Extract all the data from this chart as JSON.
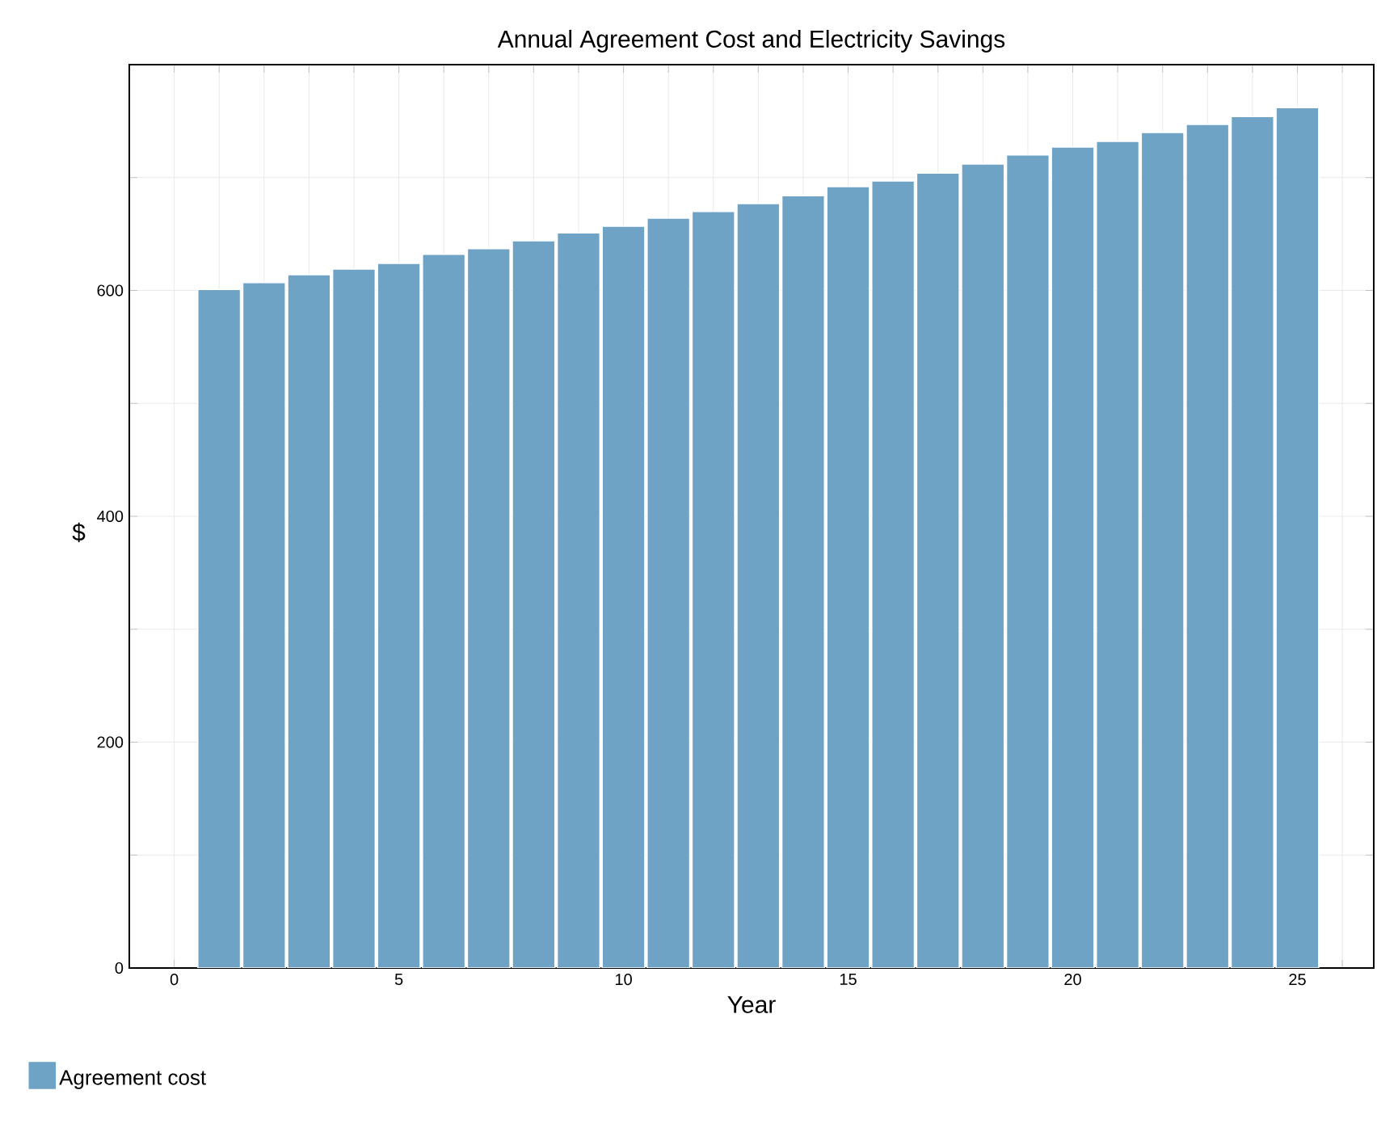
{
  "chart_data": {
    "type": "bar",
    "title": "Annual Agreement Cost and Electricity Savings",
    "xlabel": "Year",
    "ylabel": "$",
    "x": [
      1,
      2,
      3,
      4,
      5,
      6,
      7,
      8,
      9,
      10,
      11,
      12,
      13,
      14,
      15,
      16,
      17,
      18,
      19,
      20,
      21,
      22,
      23,
      24,
      25
    ],
    "series": [
      {
        "name": "Agreement cost",
        "color": "#6fa3c5",
        "values": [
          601,
          607,
          614,
          619,
          624,
          632,
          637,
          644,
          651,
          657,
          664,
          670,
          677,
          684,
          692,
          697,
          704,
          712,
          720,
          727,
          732,
          740,
          747,
          754,
          762
        ]
      }
    ],
    "xlim": [
      -1,
      26.7
    ],
    "ylim": [
      0,
      800
    ],
    "xticks": [
      0,
      {
        "value": 1,
        "label": null
      },
      {
        "value": 2,
        "label": null
      },
      {
        "value": 3,
        "label": null
      },
      {
        "value": 4,
        "label": null
      },
      5,
      {
        "value": 6,
        "label": null
      },
      {
        "value": 7,
        "label": null
      },
      {
        "value": 8,
        "label": null
      },
      {
        "value": 9,
        "label": null
      },
      10,
      {
        "value": 11,
        "label": null
      },
      {
        "value": 12,
        "label": null
      },
      {
        "value": 13,
        "label": null
      },
      {
        "value": 14,
        "label": null
      },
      15,
      {
        "value": 16,
        "label": null
      },
      {
        "value": 17,
        "label": null
      },
      {
        "value": 18,
        "label": null
      },
      {
        "value": 19,
        "label": null
      },
      20,
      {
        "value": 21,
        "label": null
      },
      {
        "value": 22,
        "label": null
      },
      {
        "value": 23,
        "label": null
      },
      {
        "value": 24,
        "label": null
      },
      25,
      {
        "value": 26,
        "label": null
      }
    ],
    "yticks": [
      0,
      {
        "value": 100,
        "label": null
      },
      200,
      {
        "value": 300,
        "label": null
      },
      400,
      {
        "value": 500,
        "label": null
      },
      600,
      {
        "value": 700,
        "label": null
      }
    ],
    "grid": true,
    "legend": "bottom left"
  }
}
